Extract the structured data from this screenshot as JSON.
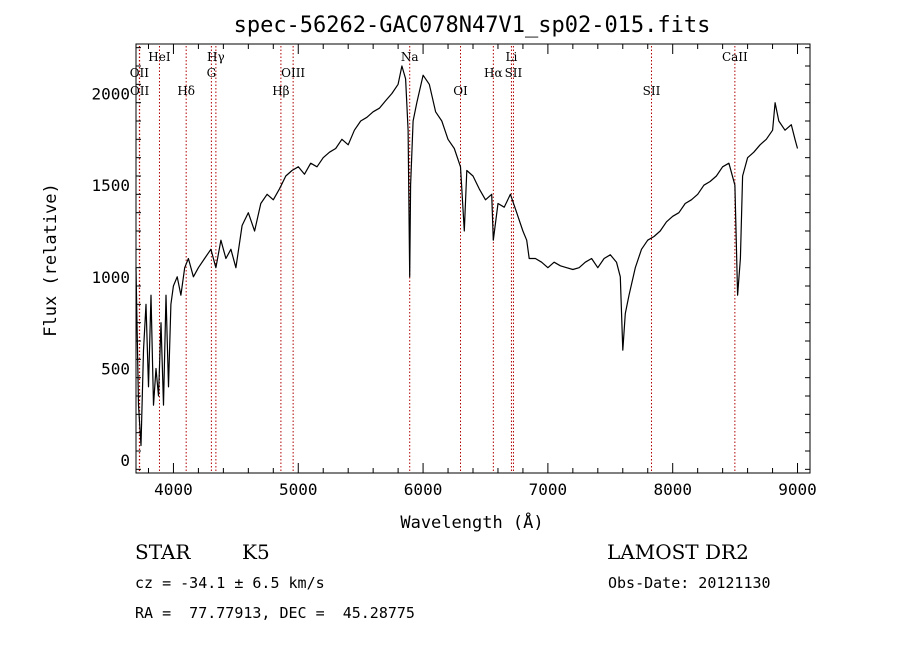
{
  "chart_data": {
    "type": "line",
    "title": "spec-56262-GAC078N47V1_sp02-015.fits",
    "xlabel": "Wavelength (Å)",
    "ylabel": "Flux (relative)",
    "xlim": [
      3700,
      9100
    ],
    "ylim": [
      -70,
      2270
    ],
    "xticks": [
      4000,
      5000,
      6000,
      7000,
      8000,
      9000
    ],
    "yticks": [
      0,
      500,
      1000,
      1500,
      2000
    ],
    "grid": false,
    "series": [
      {
        "x": [
          3700,
          3720,
          3740,
          3760,
          3780,
          3800,
          3820,
          3840,
          3860,
          3880,
          3900,
          3920,
          3940,
          3960,
          3980,
          4000,
          4030,
          4060,
          4090,
          4120,
          4160,
          4200,
          4250,
          4300,
          4340,
          4380,
          4420,
          4460,
          4500,
          4550,
          4600,
          4650,
          4700,
          4750,
          4800,
          4850,
          4900,
          4950,
          5000,
          5050,
          5100,
          5150,
          5200,
          5250,
          5300,
          5350,
          5400,
          5450,
          5500,
          5550,
          5600,
          5650,
          5700,
          5750,
          5800,
          5830,
          5860,
          5880,
          5893,
          5900,
          5920,
          5950,
          6000,
          6050,
          6100,
          6150,
          6200,
          6250,
          6300,
          6330,
          6350,
          6400,
          6450,
          6500,
          6550,
          6563,
          6600,
          6650,
          6700,
          6750,
          6800,
          6830,
          6850,
          6900,
          6950,
          7000,
          7050,
          7100,
          7150,
          7200,
          7250,
          7300,
          7350,
          7400,
          7450,
          7500,
          7550,
          7580,
          7600,
          7620,
          7650,
          7700,
          7750,
          7800,
          7850,
          7900,
          7950,
          8000,
          8050,
          8100,
          8150,
          8200,
          8250,
          8300,
          8350,
          8400,
          8450,
          8498,
          8520,
          8542,
          8560,
          8600,
          8650,
          8700,
          8750,
          8800,
          8820,
          8850,
          8900,
          8950,
          8980,
          9000
        ],
        "y": [
          1050,
          300,
          80,
          600,
          850,
          400,
          900,
          300,
          500,
          350,
          750,
          300,
          900,
          400,
          850,
          950,
          1000,
          900,
          1050,
          1100,
          1000,
          1050,
          1100,
          1150,
          1050,
          1200,
          1100,
          1150,
          1050,
          1280,
          1350,
          1250,
          1400,
          1450,
          1420,
          1480,
          1550,
          1580,
          1600,
          1560,
          1620,
          1600,
          1650,
          1680,
          1700,
          1750,
          1720,
          1800,
          1850,
          1870,
          1900,
          1920,
          1960,
          2000,
          2050,
          2150,
          2080,
          1800,
          1000,
          1500,
          1850,
          1950,
          2100,
          2050,
          1900,
          1850,
          1750,
          1700,
          1600,
          1250,
          1580,
          1550,
          1480,
          1420,
          1450,
          1200,
          1400,
          1380,
          1450,
          1350,
          1250,
          1200,
          1100,
          1100,
          1080,
          1050,
          1080,
          1060,
          1050,
          1040,
          1050,
          1080,
          1100,
          1050,
          1100,
          1120,
          1080,
          1000,
          600,
          800,
          900,
          1050,
          1150,
          1200,
          1220,
          1250,
          1300,
          1330,
          1350,
          1400,
          1420,
          1450,
          1500,
          1520,
          1550,
          1600,
          1620,
          1500,
          900,
          1100,
          1550,
          1650,
          1680,
          1720,
          1750,
          1800,
          1950,
          1850,
          1800,
          1830,
          1750,
          1700
        ]
      }
    ],
    "line_markers": [
      {
        "label": "HeI",
        "x": 3888,
        "row": 1
      },
      {
        "label": "OII",
        "x": 3727,
        "row": 2
      },
      {
        "label": "OII",
        "x": 3729,
        "row": 3
      },
      {
        "label": "Hδ",
        "x": 4102,
        "row": 3
      },
      {
        "label": "Hγ",
        "x": 4340,
        "row": 1
      },
      {
        "label": "G",
        "x": 4304,
        "row": 2
      },
      {
        "label": "OIII",
        "x": 4959,
        "row": 2
      },
      {
        "label": "Hβ",
        "x": 4861,
        "row": 3
      },
      {
        "label": "Na",
        "x": 5893,
        "row": 1
      },
      {
        "label": "OI",
        "x": 6300,
        "row": 3
      },
      {
        "label": "Li",
        "x": 6708,
        "row": 1
      },
      {
        "label": "Hα",
        "x": 6563,
        "row": 2
      },
      {
        "label": "SII",
        "x": 6724,
        "row": 2
      },
      {
        "label": "SII",
        "x": 7830,
        "row": 3
      },
      {
        "label": "CaII",
        "x": 8498,
        "row": 1
      }
    ]
  },
  "info": {
    "class_label": "STAR",
    "subclass": "K5",
    "survey": "LAMOST DR2",
    "redshift": "cz = -34.1 ± 6.5 km/s",
    "obs_date": "Obs-Date: 20121130",
    "coords": "RA =  77.77913, DEC =  45.28775"
  },
  "colors": {
    "spectrum": "#000000",
    "marker_line": "#b00000",
    "axes": "#000000"
  }
}
